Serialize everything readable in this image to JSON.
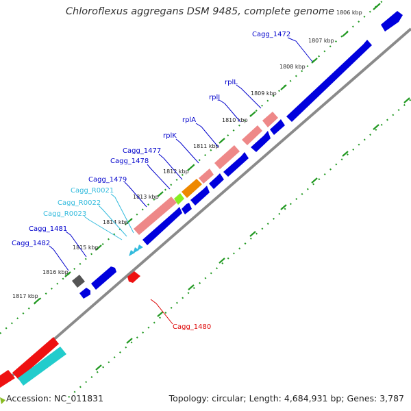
{
  "title": "Chloroflexus aggregans DSM 9485, complete genome",
  "footer": {
    "accession": "Accession: NC_011831",
    "summary": "Topology: circular; Length: 4,684,931 bp; Genes: 3,787"
  },
  "kbp_labels": [
    "1806 kbp",
    "1807 kbp",
    "1808 kbp",
    "1809 kbp",
    "1810 kbp",
    "1811 kbp",
    "1812 kbp",
    "1813 kbp",
    "1814 kbp",
    "1815 kbp",
    "1816 kbp",
    "1817 kbp"
  ],
  "gene_labels": [
    "Cagg_1472",
    "rplL",
    "rplJ",
    "rplA",
    "rplK",
    "Cagg_1477",
    "Cagg_1478",
    "Cagg_1479",
    "Cagg_R0021",
    "Cagg_R0022",
    "Cagg_R0023",
    "Cagg_1481",
    "Cagg_1482",
    "Cagg_1480"
  ],
  "colors": {
    "cds_forward": "#0000dd",
    "cds_reverse": "#ee1111",
    "rrna": "#ee8888",
    "trna": "#33bbdd",
    "orange_feature": "#ee8800",
    "green_feature": "#88ee22",
    "gray_feature": "#555555",
    "cyan_feature": "#22cccc",
    "backbone": "#888888",
    "tick": "#229922"
  }
}
